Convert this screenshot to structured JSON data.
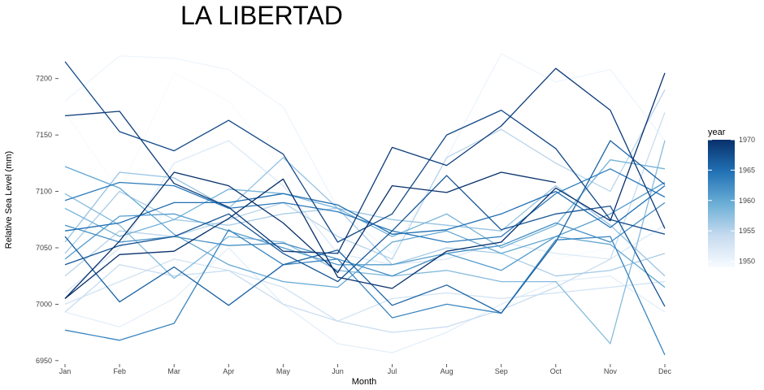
{
  "chart_data": {
    "type": "line",
    "title": "LA LIBERTAD",
    "xlabel": "Month",
    "ylabel": "Relative Sea Level (mm)",
    "categories": [
      "Jan",
      "Feb",
      "Mar",
      "Apr",
      "May",
      "Jun",
      "Jul",
      "Aug",
      "Sep",
      "Oct",
      "Nov",
      "Dec"
    ],
    "ylim": [
      6947,
      7225
    ],
    "yticks": [
      6950,
      7000,
      7050,
      7100,
      7150,
      7200
    ],
    "grid": false,
    "legend": {
      "title": "year",
      "position": "right",
      "type": "colorbar",
      "range": [
        1949,
        1970
      ],
      "ticks": [
        1950,
        1955,
        1960,
        1965,
        1970
      ],
      "color_low": "#f7fbff",
      "color_high": "#08306b"
    },
    "series": [
      {
        "year": 1949,
        "values": [
          7170,
          7100,
          7205,
          7180,
          7120,
          7060,
          7030,
          7040,
          7090,
          7040,
          7050,
          7065
        ]
      },
      {
        "year": 1950,
        "values": [
          7180,
          7220,
          7218,
          7208,
          7175,
          7085,
          7045,
          7130,
          7222,
          7197,
          7208,
          7145
        ]
      },
      {
        "year": 1951,
        "values": [
          6993,
          6980,
          7005,
          7050,
          7000,
          6965,
          6957,
          6975,
          7000,
          7020,
          7025,
          6993
        ]
      },
      {
        "year": 1952,
        "values": [
          7010,
          7050,
          7125,
          7145,
          7105,
          7045,
          7035,
          7040,
          7055,
          7045,
          7040,
          7070
        ]
      },
      {
        "year": 1953,
        "values": [
          7000,
          7020,
          7040,
          7030,
          7015,
          6985,
          7005,
          7010,
          7005,
          7010,
          7015,
          7020
        ]
      },
      {
        "year": 1954,
        "values": [
          6993,
          7035,
          7025,
          7030,
          7000,
          6985,
          6975,
          6980,
          6995,
          7015,
          7040,
          7170
        ]
      },
      {
        "year": 1955,
        "values": [
          7025,
          7065,
          7060,
          7075,
          7090,
          7060,
          7040,
          7130,
          7155,
          7125,
          7100,
          7190
        ]
      },
      {
        "year": 1956,
        "values": [
          7045,
          7100,
          7075,
          7070,
          7080,
          7085,
          7035,
          7050,
          7045,
          7025,
          7030,
          7045
        ]
      },
      {
        "year": 1957,
        "values": [
          7055,
          7117,
          7112,
          7085,
          7130,
          7085,
          7075,
          7070,
          7065,
          7105,
          7070,
          7025
        ]
      },
      {
        "year": 1958,
        "values": [
          7098,
          7070,
          7023,
          7060,
          7055,
          7030,
          7025,
          7030,
          7020,
          7020,
          6965,
          7145
        ]
      },
      {
        "year": 1959,
        "values": [
          7085,
          7060,
          7075,
          7102,
          7098,
          7085,
          7060,
          7080,
          7050,
          7070,
          7128,
          7120
        ]
      },
      {
        "year": 1960,
        "values": [
          7122,
          7103,
          7062,
          7035,
          7020,
          7015,
          7055,
          7065,
          7045,
          7060,
          7053,
          7015
        ]
      },
      {
        "year": 1961,
        "values": [
          7040,
          7078,
          7080,
          7065,
          7050,
          7035,
          7035,
          7045,
          7030,
          7060,
          7080,
          7108
        ]
      },
      {
        "year": 1962,
        "values": [
          7070,
          7055,
          7060,
          7052,
          7054,
          7040,
          7025,
          7045,
          7052,
          7072,
          7055,
          7090
        ]
      },
      {
        "year": 1963,
        "values": [
          6977,
          6968,
          6983,
          7066,
          7035,
          7040,
          6988,
          7000,
          6992,
          7057,
          7060,
          6955
        ]
      },
      {
        "year": 1964,
        "values": [
          7092,
          7108,
          7105,
          7085,
          7090,
          7082,
          7065,
          7055,
          7060,
          7098,
          7120,
          7095
        ]
      },
      {
        "year": 1965,
        "values": [
          7065,
          7072,
          7090,
          7090,
          7098,
          7088,
          7062,
          7066,
          7080,
          7100,
          7068,
          7105
        ]
      },
      {
        "year": 1966,
        "values": [
          7060,
          7002,
          7033,
          6999,
          7035,
          7048,
          6999,
          7017,
          6992,
          7055,
          7145,
          7106
        ]
      },
      {
        "year": 1967,
        "values": [
          7035,
          7052,
          7060,
          7080,
          7045,
          7020,
          7065,
          7114,
          7066,
          7080,
          7087,
          6998
        ]
      },
      {
        "year": 1968,
        "values": [
          7215,
          7153,
          7136,
          7163,
          7133,
          7055,
          7080,
          7150,
          7172,
          7138,
          7075,
          7062
        ]
      },
      {
        "year": 1969,
        "values": [
          7167,
          7171,
          7107,
          7086,
          7047,
          7045,
          7139,
          7123,
          7158,
          7209,
          7172,
          7067
        ]
      },
      {
        "year": 1970,
        "values": [
          7005,
          7044,
          7047,
          7076,
          7111,
          7024,
          7014,
          7047,
          7055,
          7103,
          7074,
          7205
        ]
      },
      {
        "year": 1971,
        "values": [
          7005,
          7056,
          7117,
          7105,
          7072,
          7028,
          7105,
          7099,
          7117,
          7108,
          null,
          null
        ]
      }
    ]
  }
}
